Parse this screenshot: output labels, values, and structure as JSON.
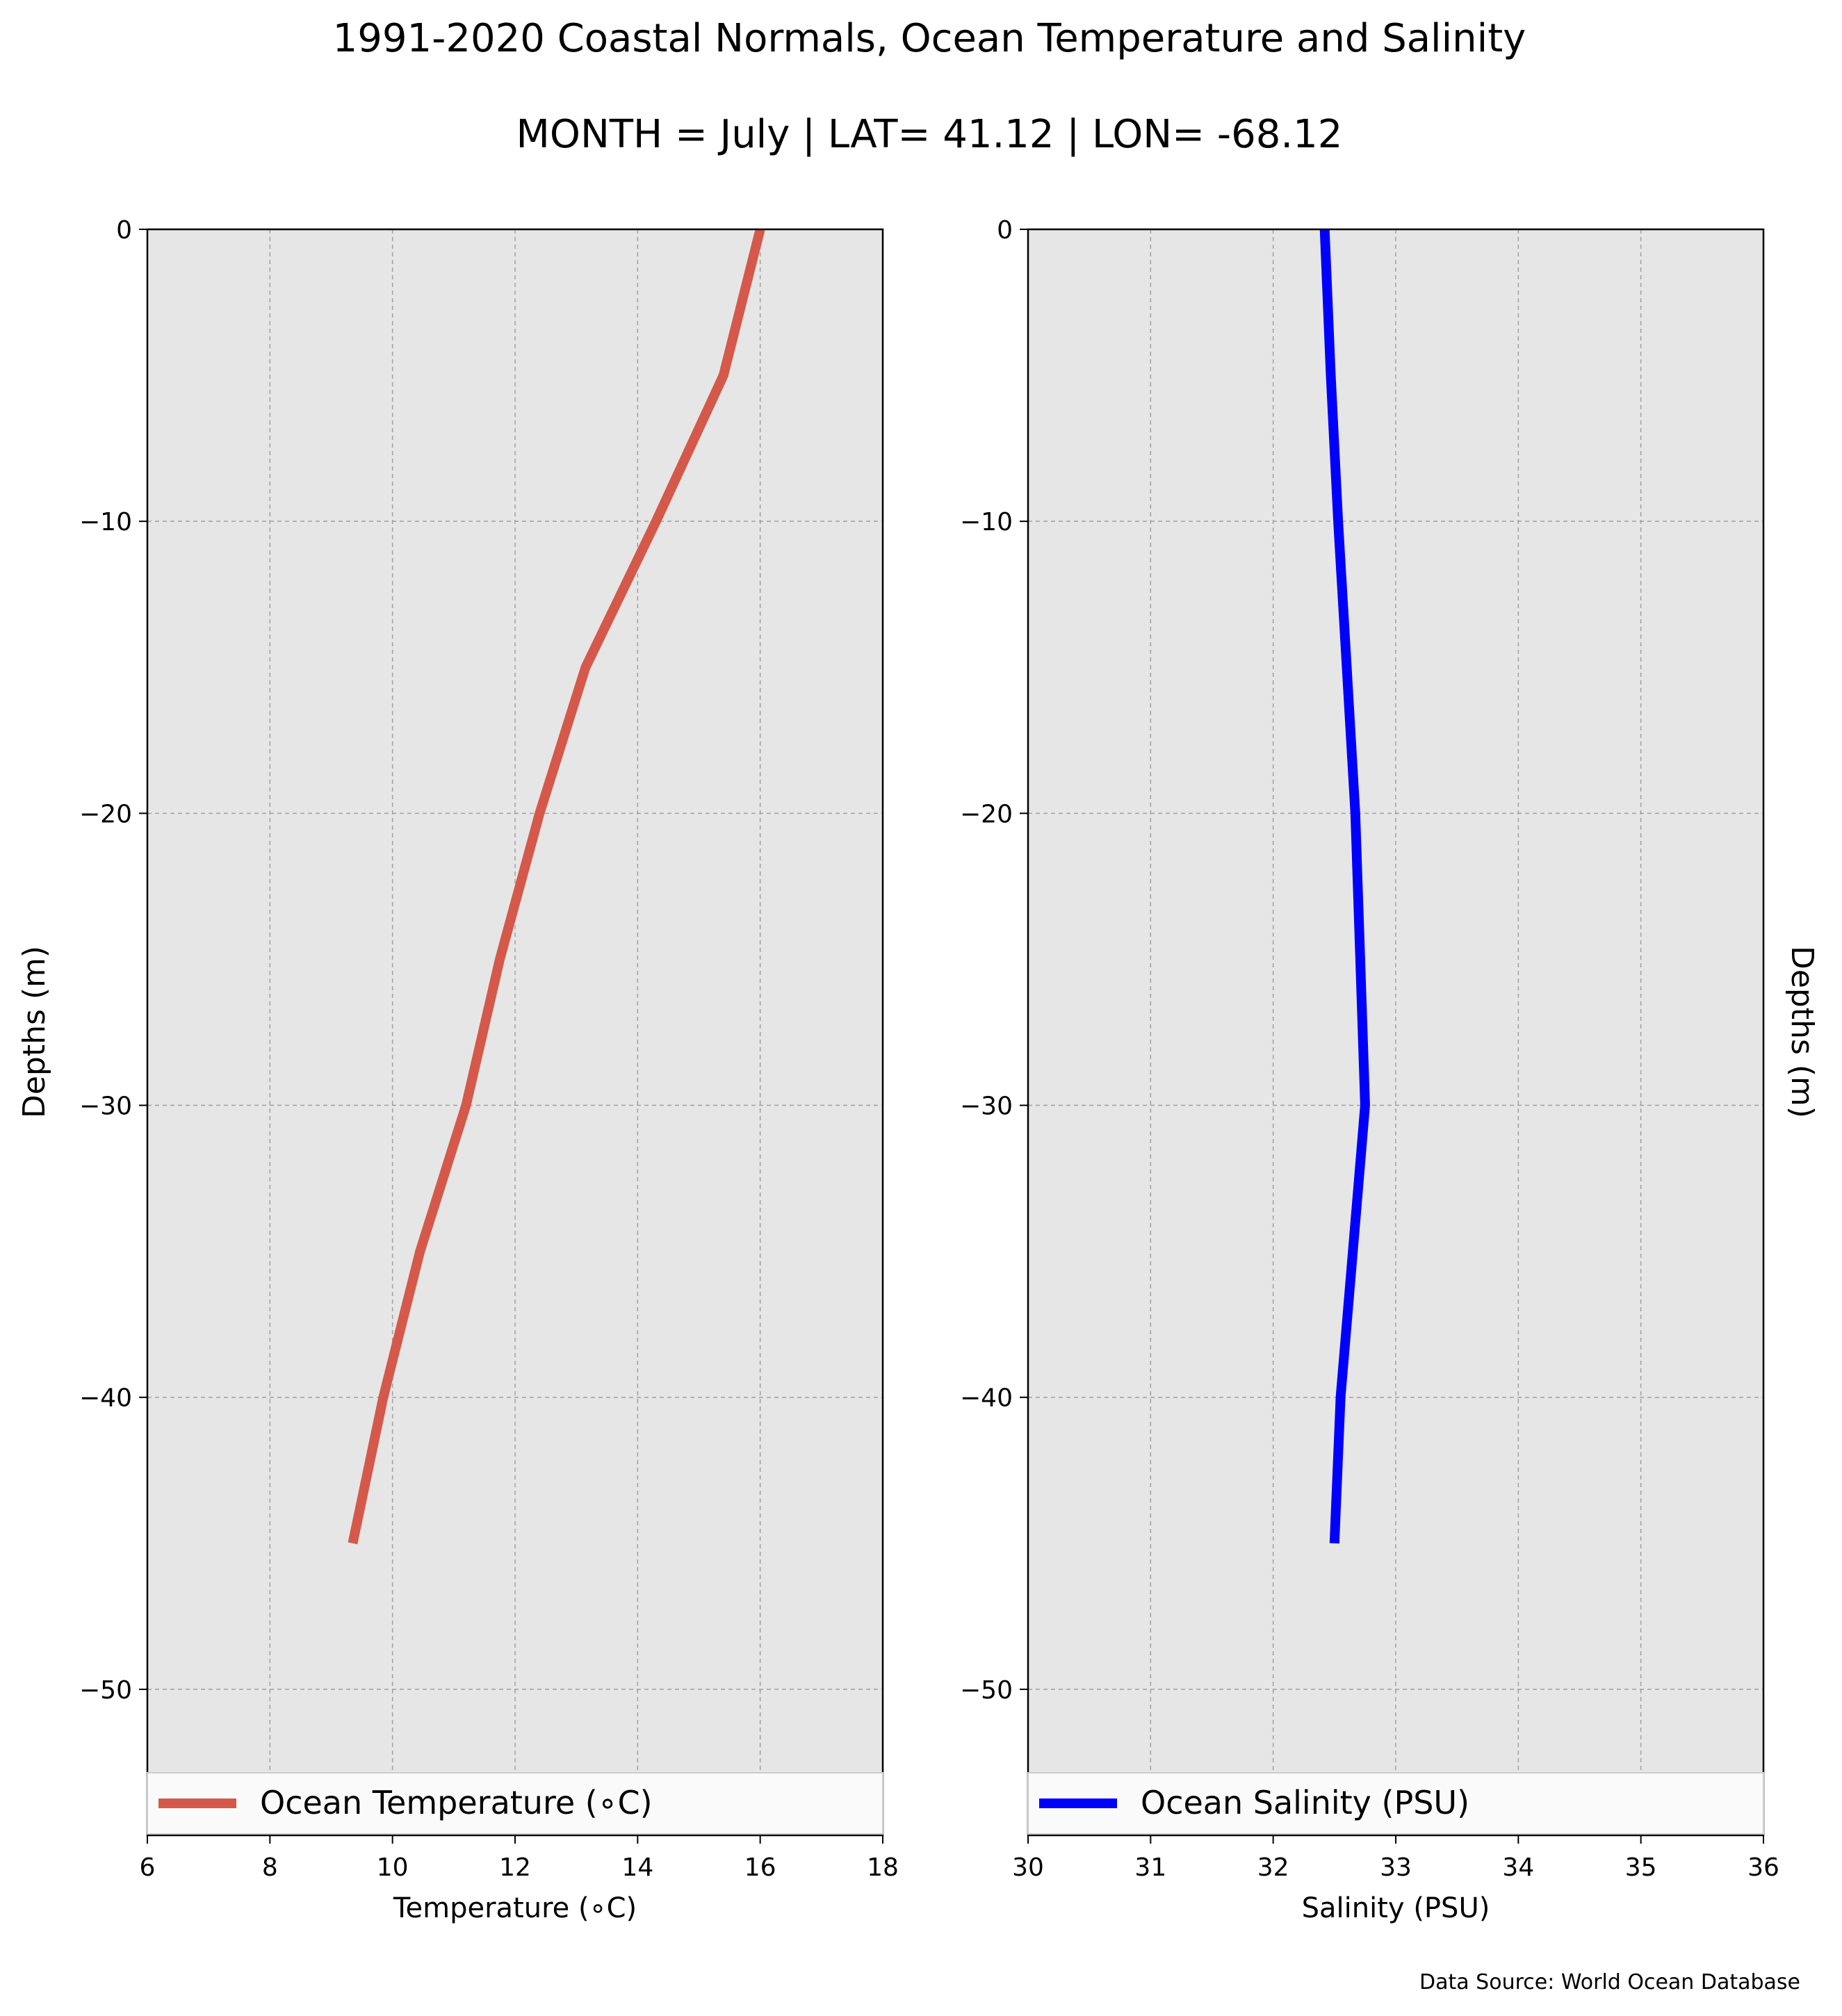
{
  "figure": {
    "title": "1991-2020 Coastal Normals, Ocean Temperature and Salinity",
    "subtitle": "MONTH = July | LAT= 41.12 | LON= -68.12",
    "source_note": "Data Source: World Ocean Database",
    "panel_background": "#e6e6e6",
    "grid_color": "#a0a0a0"
  },
  "chart_data": [
    {
      "type": "line",
      "xlabel": "Temperature ($^\\circ$C)",
      "xlabel_display": "Temperature (∘C)",
      "ylabel": "Depths (m)",
      "xlim": [
        6,
        18
      ],
      "ylim": [
        -55,
        0
      ],
      "xticks": [
        6,
        8,
        10,
        12,
        14,
        16,
        18
      ],
      "yticks": [
        0,
        -10,
        -20,
        -30,
        -40,
        -50
      ],
      "ytick_labels": [
        "0",
        "−10",
        "−20",
        "−30",
        "−40",
        "−50"
      ],
      "grid": true,
      "legend_position": "bottom",
      "series": [
        {
          "name": "Ocean Temperature (∘C)",
          "color": "#d4594a",
          "x": [
            16.0,
            15.4,
            14.3,
            13.15,
            12.4,
            11.75,
            11.2,
            10.45,
            9.85,
            9.35
          ],
          "y": [
            0,
            -5,
            -10,
            -15,
            -20,
            -25,
            -30,
            -35,
            -40,
            -45
          ]
        }
      ]
    },
    {
      "type": "line",
      "xlabel": "Salinity (PSU)",
      "ylabel": "Depths (m)",
      "ylabel_side": "right",
      "xlim": [
        30,
        36
      ],
      "ylim": [
        -55,
        0
      ],
      "xticks": [
        30,
        31,
        32,
        33,
        34,
        35,
        36
      ],
      "yticks": [
        0,
        -10,
        -20,
        -30,
        -40,
        -50
      ],
      "ytick_labels": [
        "0",
        "−10",
        "−20",
        "−30",
        "−40",
        "−50"
      ],
      "grid": true,
      "legend_position": "bottom",
      "series": [
        {
          "name": "Ocean Salinity (PSU)",
          "color": "#0000ff",
          "x": [
            32.42,
            32.47,
            32.53,
            32.6,
            32.67,
            32.71,
            32.75,
            32.65,
            32.55,
            32.5
          ],
          "y": [
            0,
            -5,
            -10,
            -15,
            -20,
            -25,
            -30,
            -35,
            -40,
            -45
          ]
        }
      ]
    }
  ]
}
